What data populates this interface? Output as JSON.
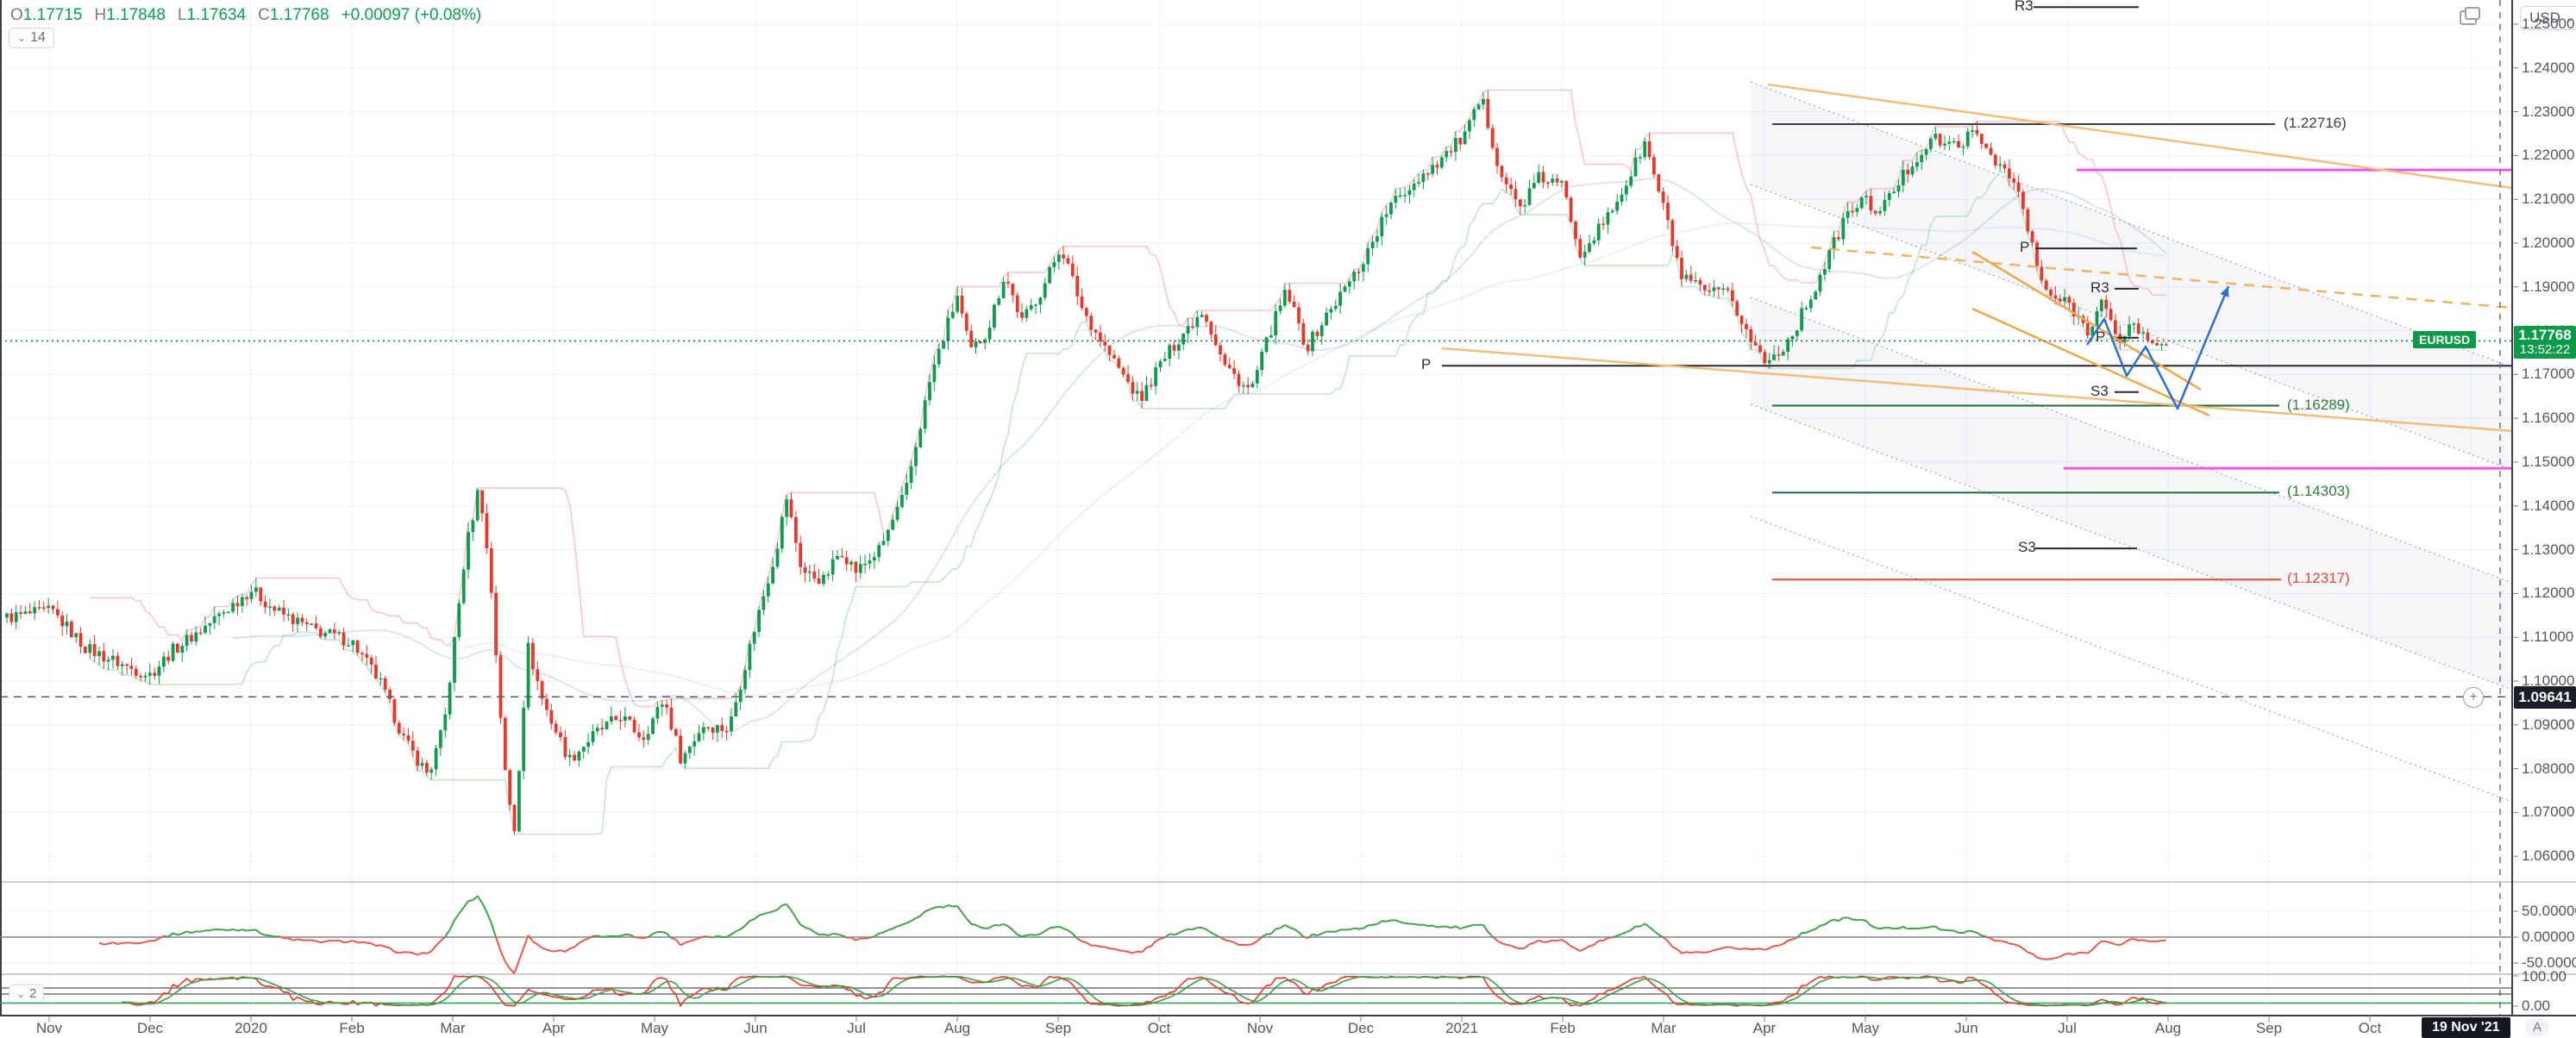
{
  "header": {
    "ohlc": [
      {
        "k": "O",
        "v": "1.17715"
      },
      {
        "k": "H",
        "v": "1.17848"
      },
      {
        "k": "L",
        "v": "1.17634"
      },
      {
        "k": "C",
        "v": "1.17768"
      }
    ],
    "change": "+0.00097 (+0.08%)",
    "hidden_indicators_count": "14"
  },
  "top_right": {
    "currency": "USD"
  },
  "price_axis": {
    "labels": [
      "1.25000",
      "1.24000",
      "1.23000",
      "1.22000",
      "1.21000",
      "1.20000",
      "1.19000",
      "1.18000",
      "1.17000",
      "1.16000",
      "1.15000",
      "1.14000",
      "1.13000",
      "1.12000",
      "1.11000",
      "1.10000",
      "1.09000",
      "1.08000",
      "1.07000",
      "1.06000"
    ],
    "price_badge": {
      "price": "1.17768",
      "countdown": "13:52:22"
    },
    "alert_badge": {
      "price": "1.09641"
    },
    "symbol_label": "EURUSD"
  },
  "time_axis": {
    "labels": [
      "Nov",
      "Dec",
      "2020",
      "Feb",
      "Mar",
      "Apr",
      "May",
      "Jun",
      "Jul",
      "Aug",
      "Sep",
      "Oct",
      "Nov",
      "Dec",
      "2021",
      "Feb",
      "Mar",
      "Apr",
      "May",
      "Jun",
      "Jul",
      "Aug",
      "Sep",
      "Oct",
      "Nov"
    ],
    "date_badge": "19 Nov '21",
    "auto_button": "A"
  },
  "panes": {
    "oscillator_labels": [
      "50.00000",
      "0.00000",
      "-50.00000"
    ],
    "stochastic_labels": [
      "100.00",
      "0.00"
    ],
    "pane3_hidden_count": "2"
  },
  "chart_data": {
    "type": "candlestick",
    "symbol": "EURUSD",
    "current_price": 1.17768,
    "current_change": 0.00097,
    "alert_price": 1.09641,
    "y_range": [
      1.0541,
      1.2555
    ],
    "price_ticks": [
      1.25,
      1.24,
      1.23,
      1.22,
      1.21,
      1.2,
      1.19,
      1.18,
      1.17,
      1.16,
      1.15,
      1.14,
      1.13,
      1.12,
      1.11,
      1.1,
      1.09,
      1.08,
      1.07,
      1.06
    ],
    "x_labels": [
      "Nov",
      "Dec",
      "2020",
      "Feb",
      "Mar",
      "Apr",
      "May",
      "Jun",
      "Jul",
      "Aug",
      "Sep",
      "Oct",
      "Nov",
      "Dec",
      "2021",
      "Feb",
      "Mar",
      "Apr",
      "May",
      "Jun",
      "Jul",
      "Aug",
      "Sep",
      "Oct",
      "Nov"
    ],
    "candle_colors": {
      "up": "#119a4e",
      "down": "#e8382d"
    },
    "anchors": [
      [
        8,
        1.1145
      ],
      [
        60,
        1.116
      ],
      [
        100,
        1.1075
      ],
      [
        150,
        1.103
      ],
      [
        174,
        1.1015
      ],
      [
        200,
        1.107
      ],
      [
        235,
        1.112
      ],
      [
        270,
        1.1175
      ],
      [
        291,
        1.121
      ],
      [
        320,
        1.116
      ],
      [
        360,
        1.112
      ],
      [
        408,
        1.109
      ],
      [
        440,
        1.1
      ],
      [
        470,
        1.086
      ],
      [
        497,
        1.0785
      ],
      [
        515,
        1.09
      ],
      [
        540,
        1.13
      ],
      [
        556,
        1.145
      ],
      [
        570,
        1.12
      ],
      [
        585,
        1.08
      ],
      [
        596,
        1.065
      ],
      [
        612,
        1.108
      ],
      [
        630,
        1.095
      ],
      [
        660,
        1.082
      ],
      [
        690,
        1.088
      ],
      [
        720,
        1.092
      ],
      [
        745,
        1.087
      ],
      [
        770,
        1.096
      ],
      [
        790,
        1.082
      ],
      [
        815,
        1.09
      ],
      [
        845,
        1.089
      ],
      [
        876,
        1.113
      ],
      [
        900,
        1.13
      ],
      [
        912,
        1.142
      ],
      [
        930,
        1.125
      ],
      [
        955,
        1.123
      ],
      [
        975,
        1.13
      ],
      [
        993,
        1.125
      ],
      [
        1020,
        1.13
      ],
      [
        1050,
        1.143
      ],
      [
        1080,
        1.17
      ],
      [
        1110,
        1.188
      ],
      [
        1125,
        1.175
      ],
      [
        1145,
        1.18
      ],
      [
        1165,
        1.193
      ],
      [
        1185,
        1.182
      ],
      [
        1210,
        1.19
      ],
      [
        1230,
        1.1995
      ],
      [
        1255,
        1.185
      ],
      [
        1285,
        1.175
      ],
      [
        1322,
        1.164
      ],
      [
        1344,
        1.172
      ],
      [
        1370,
        1.179
      ],
      [
        1395,
        1.185
      ],
      [
        1420,
        1.172
      ],
      [
        1450,
        1.166
      ],
      [
        1475,
        1.181
      ],
      [
        1492,
        1.189
      ],
      [
        1515,
        1.176
      ],
      [
        1540,
        1.184
      ],
      [
        1578,
        1.195
      ],
      [
        1610,
        1.208
      ],
      [
        1645,
        1.215
      ],
      [
        1675,
        1.22
      ],
      [
        1700,
        1.225
      ],
      [
        1718,
        1.233
      ],
      [
        1740,
        1.216
      ],
      [
        1762,
        1.208
      ],
      [
        1785,
        1.215
      ],
      [
        1812,
        1.213
      ],
      [
        1832,
        1.198
      ],
      [
        1862,
        1.205
      ],
      [
        1892,
        1.216
      ],
      [
        1907,
        1.223
      ],
      [
        1929,
        1.208
      ],
      [
        1950,
        1.192
      ],
      [
        1975,
        1.189
      ],
      [
        2005,
        1.188
      ],
      [
        2030,
        1.178
      ],
      [
        2048,
        1.1725
      ],
      [
        2075,
        1.178
      ],
      [
        2105,
        1.19
      ],
      [
        2140,
        1.206
      ],
      [
        2160,
        1.21
      ],
      [
        2180,
        1.207
      ],
      [
        2205,
        1.215
      ],
      [
        2240,
        1.224
      ],
      [
        2262,
        1.222
      ],
      [
        2290,
        1.225
      ],
      [
        2315,
        1.219
      ],
      [
        2340,
        1.212
      ],
      [
        2358,
        1.198
      ],
      [
        2368,
        1.19
      ],
      [
        2385,
        1.187
      ],
      [
        2400,
        1.186
      ],
      [
        2420,
        1.18
      ],
      [
        2438,
        1.187
      ],
      [
        2455,
        1.177
      ],
      [
        2472,
        1.182
      ],
      [
        2492,
        1.177
      ],
      [
        2512,
        1.1777
      ]
    ],
    "levels": [
      {
        "label": "(1.22716)",
        "price": 1.22716,
        "color": "#3c3f48",
        "text_color": "#3c3f48",
        "x1": 2055,
        "x2": 2638,
        "label_x": 2648
      },
      {
        "label": "(1.16289)",
        "price": 1.16289,
        "color": "#1e6b35",
        "text_color": "#2e7d3f",
        "x1": 2055,
        "x2": 2643,
        "label_x": 2652
      },
      {
        "label": "(1.14303)",
        "price": 1.14303,
        "color": "#1e6b35",
        "text_color": "#2e7d3f",
        "x1": 2055,
        "x2": 2643,
        "label_x": 2652
      },
      {
        "label": "(1.12317)",
        "price": 1.12317,
        "color": "#e8493c",
        "text_color": "#e8493c",
        "x1": 2055,
        "x2": 2645,
        "label_x": 2652
      }
    ],
    "magenta_lines": [
      {
        "price": 1.2167,
        "x1": 2408,
        "color": "#ee55ee"
      },
      {
        "price": 1.1486,
        "x1": 2393,
        "color": "#ee55ee"
      }
    ],
    "pivots_monthly": [
      {
        "label": "R3",
        "price": 1.2539,
        "label_x": 2336,
        "x1": 2358,
        "x2": 2480
      },
      {
        "label": "P",
        "price": 1.1988,
        "label_x": 2342,
        "x1": 2360,
        "x2": 2478
      },
      {
        "label": "S3",
        "price": 1.1303,
        "label_x": 2340,
        "x1": 2360,
        "x2": 2478
      }
    ],
    "pivots_weekly": [
      {
        "label": "R3",
        "price": 1.1896,
        "label_x": 2424,
        "x1": 2452,
        "x2": 2480
      },
      {
        "label": "P",
        "price": 1.1784,
        "label_x": 2430,
        "x1": 2450,
        "x2": 2480
      },
      {
        "label": "S3",
        "price": 1.166,
        "label_x": 2424,
        "x1": 2452,
        "x2": 2480
      }
    ],
    "pivot_main": {
      "label": "P",
      "price": 1.172,
      "label_x": 1648,
      "x1": 1672,
      "x2": 2913
    },
    "drawings": {
      "trendlines": [
        {
          "x1": 1672,
          "y1": 404,
          "x2": 2913,
          "y2": 500,
          "style": "solid",
          "color": "#f3bd7a",
          "w": 2.5
        },
        {
          "x1": 2050,
          "y1": 98,
          "x2": 2913,
          "y2": 218,
          "style": "solid",
          "color": "#f3bd7a",
          "w": 2.5
        },
        {
          "x1": 2100,
          "y1": 287,
          "x2": 2913,
          "y2": 357,
          "style": "dashed",
          "color": "#f2b264",
          "w": 2.5
        },
        {
          "x1": 2287,
          "y1": 292,
          "x2": 2552,
          "y2": 452,
          "style": "solid",
          "color": "#eda84e",
          "w": 2.5
        },
        {
          "x1": 2287,
          "y1": 358,
          "x2": 2562,
          "y2": 482,
          "style": "solid",
          "color": "#eda84e",
          "w": 2.5
        }
      ],
      "channel_fan": {
        "lines": [
          [
            2030,
            95,
            2913,
            426
          ],
          [
            2030,
            214,
            2913,
            545
          ],
          [
            2030,
            345,
            2913,
            676
          ],
          [
            2030,
            469,
            2913,
            800
          ],
          [
            2030,
            599,
            2913,
            930
          ]
        ],
        "bands": [
          [
            0,
            1
          ],
          [
            2,
            3
          ]
        ],
        "color": "#9aa2b1",
        "fill": "rgba(155,163,180,0.10)"
      },
      "projection_zigzag": {
        "points": [
          [
            2420,
            400
          ],
          [
            2440,
            370
          ],
          [
            2466,
            436
          ],
          [
            2488,
            402
          ],
          [
            2525,
            474
          ],
          [
            2584,
            332
          ]
        ],
        "color": "#2f6fd0",
        "w": 2.5
      },
      "alert_line_price": 1.09641,
      "current_price_line": 1.17768,
      "crosshair_x": 2899
    },
    "oscillator": {
      "scale": 1800,
      "clamp": [
        -70,
        102
      ],
      "pos_color": "#44a04c",
      "neg_color": "#e8584e"
    },
    "stochastic": {
      "k_color": "#e8382d",
      "d_color": "#3c9e46"
    }
  }
}
